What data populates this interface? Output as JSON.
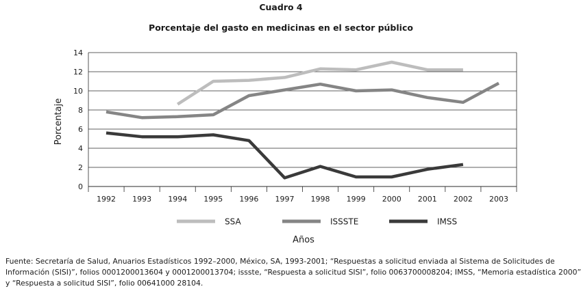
{
  "header": {
    "label": "Cuadro 4",
    "title": "Porcentaje del gasto en medicinas en el sector público"
  },
  "chart_data": {
    "type": "line",
    "title": "Porcentaje del gasto en medicinas en el sector público",
    "xlabel": "Años",
    "ylabel": "Porcentaje",
    "ylim": [
      0,
      14
    ],
    "yticks": [
      0,
      2,
      4,
      6,
      8,
      10,
      12,
      14
    ],
    "categories": [
      "1992",
      "1993",
      "1994",
      "1995",
      "1996",
      "1997",
      "1998",
      "1999",
      "2000",
      "2001",
      "2002",
      "2003"
    ],
    "grid": true,
    "legend": "bottom",
    "series": [
      {
        "name": "SSA",
        "color": "#bdbdbd",
        "values": [
          null,
          null,
          8.6,
          11.0,
          11.1,
          11.4,
          12.3,
          12.2,
          13.0,
          12.2,
          12.2,
          null
        ]
      },
      {
        "name": "ISSSTE",
        "color": "#858585",
        "values": [
          7.8,
          7.2,
          7.3,
          7.5,
          9.5,
          10.1,
          10.7,
          10.0,
          10.1,
          9.3,
          8.8,
          10.8
        ]
      },
      {
        "name": "IMSS",
        "color": "#3a3a3a",
        "values": [
          5.6,
          5.2,
          5.2,
          5.4,
          4.8,
          0.9,
          2.1,
          1.0,
          1.0,
          1.8,
          2.3,
          null
        ]
      }
    ]
  },
  "source": {
    "line1": "Fuente: Secretaría de Salud, Anuarios Estadísticos 1992–2000, México, SA, 1993-2001; “Respuestas a solicitud enviada al Sistema de Solicitudes de",
    "line2": "Información (SISI)”, folios 0001200013604 y 0001200013704; issste, “Respuesta a solicitud SISI”, folio 0063700008204; IMSS, “Memoria estadística 2000”",
    "line3": "y “Respuesta a solicitud SISI”, folio 00641000 28104."
  }
}
